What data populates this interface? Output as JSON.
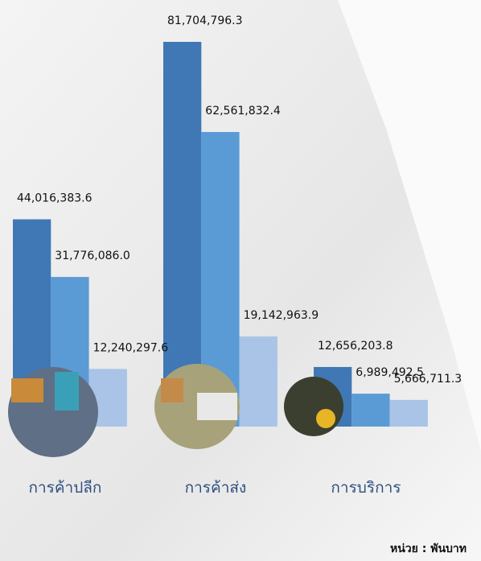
{
  "chart_data": {
    "type": "bar",
    "categories": [
      "การค้าปลีก",
      "การค้าส่ง",
      "การบริการ"
    ],
    "series": [
      {
        "color": "#3f78b4",
        "values": [
          44016383.6,
          81704796.3,
          12656203.8
        ],
        "value_labels": [
          "44,016,383.6",
          "81,704,796.3",
          "12,656,203.8"
        ]
      },
      {
        "color": "#5b9bd5",
        "values": [
          31776086.0,
          62561832.4,
          6989492.5
        ],
        "value_labels": [
          "31,776,086.0",
          "62,561,832.4",
          "6,989,492.5"
        ]
      },
      {
        "color": "#a9c4e6",
        "values": [
          12240297.6,
          19142963.9,
          5666711.3
        ],
        "value_labels": [
          "12,240,297.6",
          "19,142,963.9",
          "5,666,711.3"
        ]
      }
    ],
    "unit": "หน่วย : พันบาท"
  }
}
